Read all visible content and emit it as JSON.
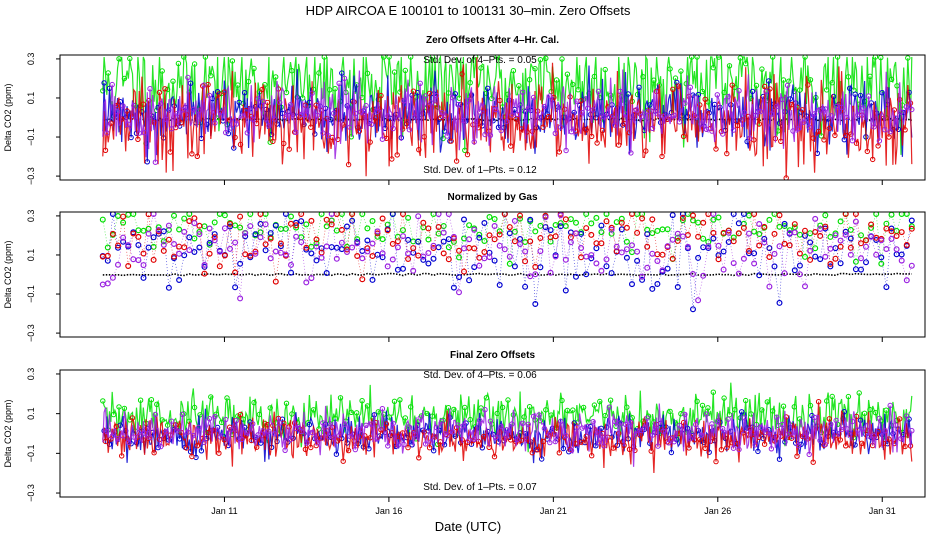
{
  "figure": {
    "title": "HDP    AIRCOA E    100101 to 100131    30–min. Zero Offsets",
    "xlabel": "Date (UTC)"
  },
  "chart_data": [
    {
      "type": "line",
      "title": "Zero Offsets After 4–Hr. Cal.",
      "ylabel": "Delta CO2 (ppm)",
      "ylim": [
        -0.32,
        0.32
      ],
      "yticks": [
        -0.3,
        -0.1,
        0.1,
        0.3
      ],
      "yticklabels": [
        "−0.3",
        "−0.1",
        "0.1",
        "0.3"
      ],
      "xlim": [
        6.0,
        32.3
      ],
      "xticks": [
        11,
        16,
        21,
        26,
        31
      ],
      "xticklabels": [
        "Jan 11",
        "Jan 16",
        "Jan 21",
        "Jan 26",
        "Jan 31"
      ],
      "annotations": [
        "Std. Dev. of 4–Pts. = 0.05",
        "Std. Dev. of 1–Pts. = 0.12"
      ],
      "series": [
        {
          "name": "gas-green",
          "color": "#00e000",
          "mean": 0.17,
          "sd": 0.12,
          "seed": 11
        },
        {
          "name": "gas-blue",
          "color": "#0000d0",
          "mean": 0.02,
          "sd": 0.08,
          "seed": 12
        },
        {
          "name": "gas-red",
          "color": "#e00000",
          "mean": -0.02,
          "sd": 0.11,
          "seed": 13
        },
        {
          "name": "gas-purple",
          "color": "#9a20e0",
          "mean": 0.03,
          "sd": 0.08,
          "seed": 14
        }
      ],
      "baseline": {
        "y": -0.01,
        "color": "#000000"
      },
      "x_start": 7.3,
      "x_end": 31.9,
      "n_points": 600
    },
    {
      "type": "scatter",
      "title": "Normalized by Gas",
      "ylabel": "Delta CO2 (ppm)",
      "ylim": [
        -0.32,
        0.32
      ],
      "yticks": [
        -0.3,
        -0.1,
        0.1,
        0.3
      ],
      "yticklabels": [
        "−0.3",
        "−0.1",
        "0.1",
        "0.3"
      ],
      "xlim": [
        6.0,
        32.3
      ],
      "xticks": [
        11,
        16,
        21,
        26,
        31
      ],
      "xticklabels": [
        "Jan 11",
        "Jan 16",
        "Jan 21",
        "Jan 26",
        "Jan 31"
      ],
      "annotations": [],
      "series": [
        {
          "name": "gas-green",
          "color": "#00e000",
          "mean": 0.24,
          "sd": 0.06,
          "seed": 21
        },
        {
          "name": "gas-blue",
          "color": "#0000d0",
          "mean": 0.12,
          "sd": 0.1,
          "seed": 22
        },
        {
          "name": "gas-red",
          "color": "#e00000",
          "mean": 0.18,
          "sd": 0.08,
          "seed": 23
        },
        {
          "name": "gas-purple",
          "color": "#9a20e0",
          "mean": 0.11,
          "sd": 0.1,
          "seed": 24
        }
      ],
      "baseline": {
        "y": 0.0,
        "color": "#000000"
      },
      "x_start": 7.3,
      "x_end": 31.9,
      "n_points": 160
    },
    {
      "type": "line",
      "title": "Final Zero Offsets",
      "ylabel": "Delta CO2 (ppm)",
      "ylim": [
        -0.32,
        0.32
      ],
      "yticks": [
        -0.3,
        -0.1,
        0.1,
        0.3
      ],
      "yticklabels": [
        "−0.3",
        "−0.1",
        "0.1",
        "0.3"
      ],
      "xlim": [
        6.0,
        32.3
      ],
      "xticks": [
        11,
        16,
        21,
        26,
        31
      ],
      "xticklabels": [
        "Jan 11",
        "Jan 16",
        "Jan 21",
        "Jan 26",
        "Jan 31"
      ],
      "annotations": [
        "Std. Dev. of 4–Pts. = 0.06",
        "Std. Dev. of 1–Pts. = 0.07"
      ],
      "series": [
        {
          "name": "gas-green",
          "color": "#00e000",
          "mean": 0.08,
          "sd": 0.06,
          "seed": 31
        },
        {
          "name": "gas-blue",
          "color": "#0000d0",
          "mean": -0.01,
          "sd": 0.05,
          "seed": 32
        },
        {
          "name": "gas-red",
          "color": "#e00000",
          "mean": -0.02,
          "sd": 0.05,
          "seed": 33
        },
        {
          "name": "gas-purple",
          "color": "#9a20e0",
          "mean": 0.01,
          "sd": 0.05,
          "seed": 34
        }
      ],
      "baseline": null,
      "x_start": 7.3,
      "x_end": 31.9,
      "n_points": 600
    }
  ]
}
